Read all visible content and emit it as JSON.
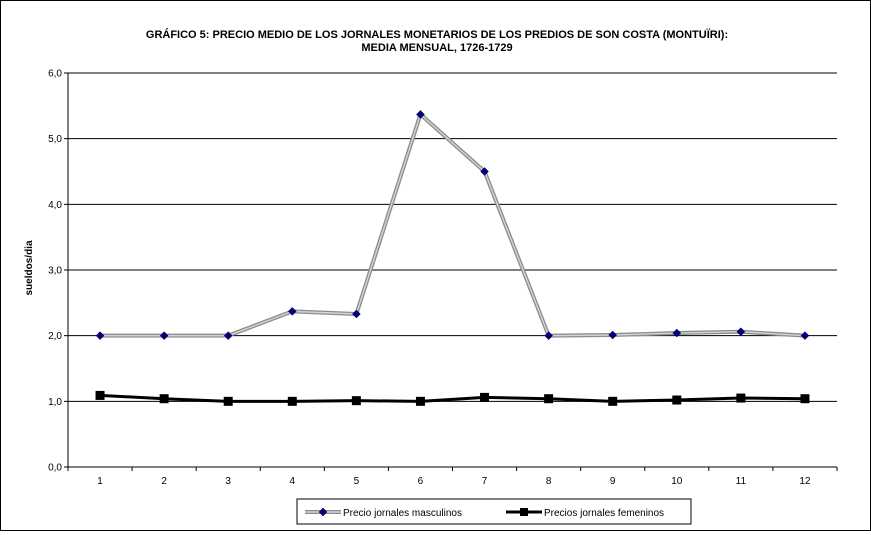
{
  "chart_data": {
    "type": "line",
    "title_line1": "GRÁFICO 5: PRECIO MEDIO DE LOS JORNALES MONETARIOS DE LOS PREDIOS DE SON COSTA (MONTUÏRI):",
    "title_line2": "MEDIA MENSUAL, 1726-1729",
    "xlabel": "",
    "ylabel": "sueldos/dia",
    "x": [
      1,
      2,
      3,
      4,
      5,
      6,
      7,
      8,
      9,
      10,
      11,
      12
    ],
    "x_tick_labels": [
      "1",
      "2",
      "3",
      "4",
      "5",
      "6",
      "7",
      "8",
      "9",
      "10",
      "11",
      "12"
    ],
    "ylim": [
      0,
      6
    ],
    "y_tick_labels": [
      "0,0",
      "1,0",
      "2,0",
      "3,0",
      "4,0",
      "5,0",
      "6,0"
    ],
    "grid": "horizontal",
    "legend_position": "bottom",
    "series": [
      {
        "name": "Precio jornales masculinos",
        "values": [
          2.0,
          2.0,
          2.0,
          2.37,
          2.33,
          5.37,
          4.5,
          2.0,
          2.01,
          2.04,
          2.06,
          2.0
        ],
        "color": "#8c8c8c",
        "marker": "diamond",
        "marker_color": "#000080"
      },
      {
        "name": "Precios jornales femeninos",
        "values": [
          1.09,
          1.04,
          1.0,
          1.0,
          1.01,
          1.0,
          1.06,
          1.04,
          1.0,
          1.02,
          1.05,
          1.04
        ],
        "color": "#000000",
        "marker": "square",
        "marker_color": "#000000"
      }
    ]
  }
}
